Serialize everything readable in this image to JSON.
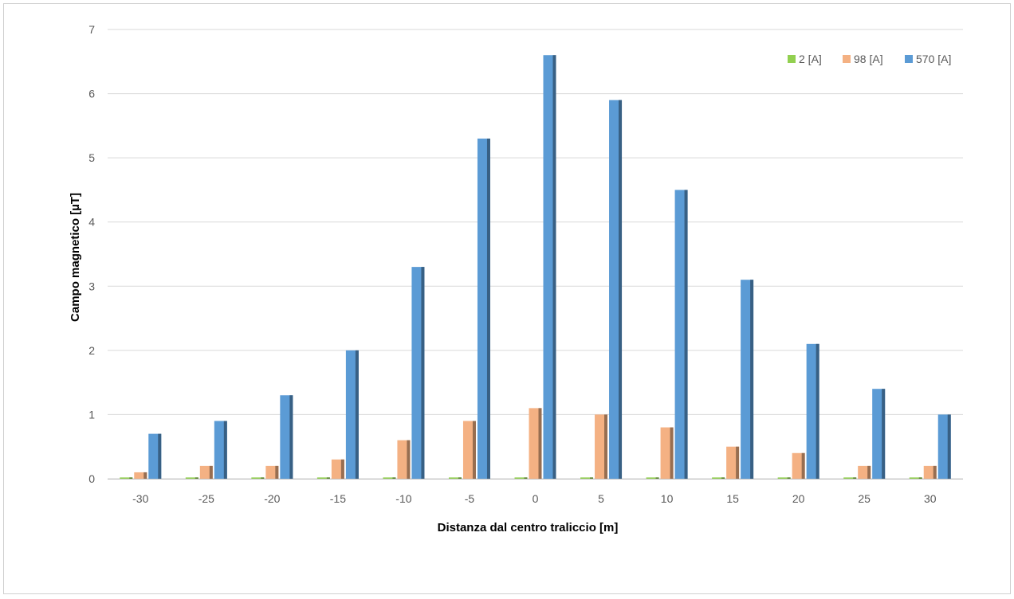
{
  "chart_data": {
    "type": "bar",
    "title": "",
    "xlabel": "Distanza dal centro traliccio [m]",
    "ylabel": "Campo magnetico [µT]",
    "categories": [
      "-30",
      "-25",
      "-20",
      "-15",
      "-10",
      "-5",
      "0",
      "5",
      "10",
      "15",
      "20",
      "25",
      "30"
    ],
    "series": [
      {
        "name": "2 [A]",
        "color": "#92d050",
        "values": [
          0.02,
          0.02,
          0.02,
          0.02,
          0.02,
          0.02,
          0.02,
          0.02,
          0.02,
          0.02,
          0.02,
          0.02,
          0.02
        ]
      },
      {
        "name": "98 [A]",
        "color": "#f4b183",
        "values": [
          0.1,
          0.2,
          0.2,
          0.3,
          0.6,
          0.9,
          1.1,
          1.0,
          0.8,
          0.5,
          0.4,
          0.2,
          0.2
        ]
      },
      {
        "name": "570 [A]",
        "color": "#5b9bd5",
        "values": [
          0.7,
          0.9,
          1.3,
          2.0,
          3.3,
          5.3,
          6.6,
          5.9,
          4.5,
          3.1,
          2.1,
          1.4,
          1.0
        ]
      }
    ],
    "ylim": [
      0,
      7
    ],
    "yticks": [
      0,
      1,
      2,
      3,
      4,
      5,
      6,
      7
    ],
    "grid": true,
    "legend_position": "top-right"
  }
}
